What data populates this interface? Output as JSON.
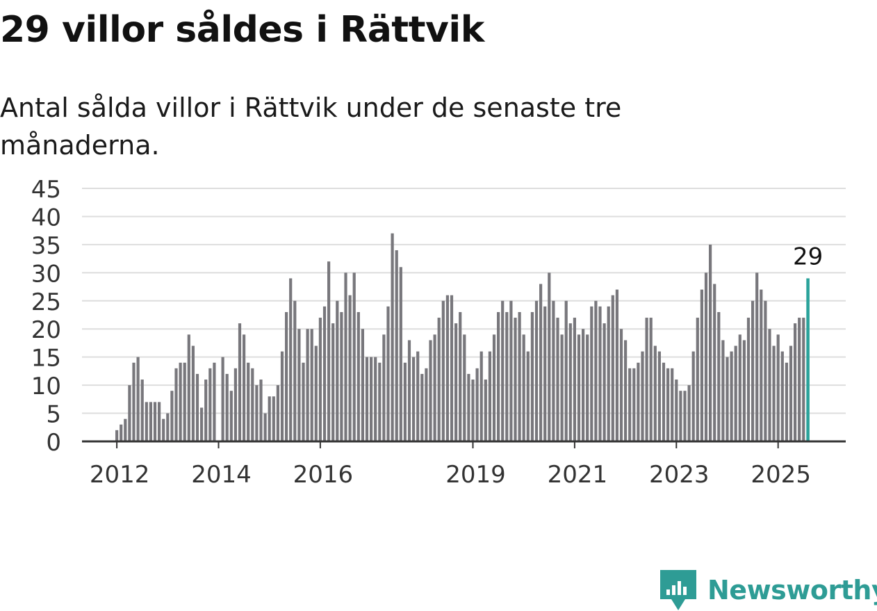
{
  "title": "29 villor såldes i Rättvik",
  "subtitle": "Antal sålda villor i Rättvik under de senaste tre månaderna.",
  "brand": {
    "name": "Newsworthy",
    "color": "#2e9c95"
  },
  "colors": {
    "bar": "#78777c",
    "highlight": "#2ba39b",
    "grid": "#dddddd",
    "axis": "#333333",
    "tick_text": "#333333"
  },
  "chart_data": {
    "type": "bar",
    "title": "29 villor såldes i Rättvik",
    "subtitle": "Antal sålda villor i Rättvik under de senaste tre månaderna.",
    "xlabel": "",
    "ylabel": "",
    "ylim": [
      0,
      45
    ],
    "y_ticks": [
      "0",
      "5",
      "10",
      "15",
      "20",
      "25",
      "30",
      "35",
      "40",
      "45"
    ],
    "x_ticks": [
      "2012",
      "2014",
      "2016",
      "2019",
      "2021",
      "2023",
      "2025"
    ],
    "grid": true,
    "frequency": "monthly, rolling three-month total",
    "start": "2012-01",
    "end": "2025-06",
    "values": [
      2,
      3,
      4,
      10,
      14,
      15,
      11,
      7,
      7,
      7,
      7,
      4,
      5,
      9,
      13,
      14,
      14,
      19,
      17,
      12,
      6,
      11,
      13,
      14,
      0,
      15,
      12,
      9,
      13,
      21,
      19,
      14,
      13,
      10,
      11,
      5,
      8,
      8,
      10,
      16,
      23,
      29,
      25,
      20,
      14,
      20,
      20,
      17,
      22,
      24,
      32,
      21,
      25,
      23,
      30,
      26,
      30,
      23,
      20,
      15,
      15,
      15,
      14,
      19,
      24,
      37,
      34,
      31,
      14,
      18,
      15,
      16,
      12,
      13,
      18,
      19,
      22,
      25,
      26,
      26,
      21,
      23,
      19,
      12,
      11,
      13,
      16,
      11,
      16,
      19,
      23,
      25,
      23,
      25,
      22,
      23,
      19,
      16,
      23,
      25,
      28,
      24,
      30,
      25,
      22,
      19,
      25,
      21,
      22,
      19,
      20,
      19,
      24,
      25,
      24,
      21,
      24,
      26,
      27,
      20,
      18,
      13,
      13,
      14,
      16,
      22,
      22,
      17,
      16,
      14,
      13,
      13,
      11,
      9,
      9,
      10,
      16,
      22,
      27,
      30,
      35,
      28,
      23,
      18,
      15,
      16,
      17,
      19,
      18,
      22,
      25,
      30,
      27,
      25,
      20,
      17,
      19,
      16,
      14,
      17,
      21,
      22,
      22,
      29
    ],
    "last_value_label": "29"
  }
}
